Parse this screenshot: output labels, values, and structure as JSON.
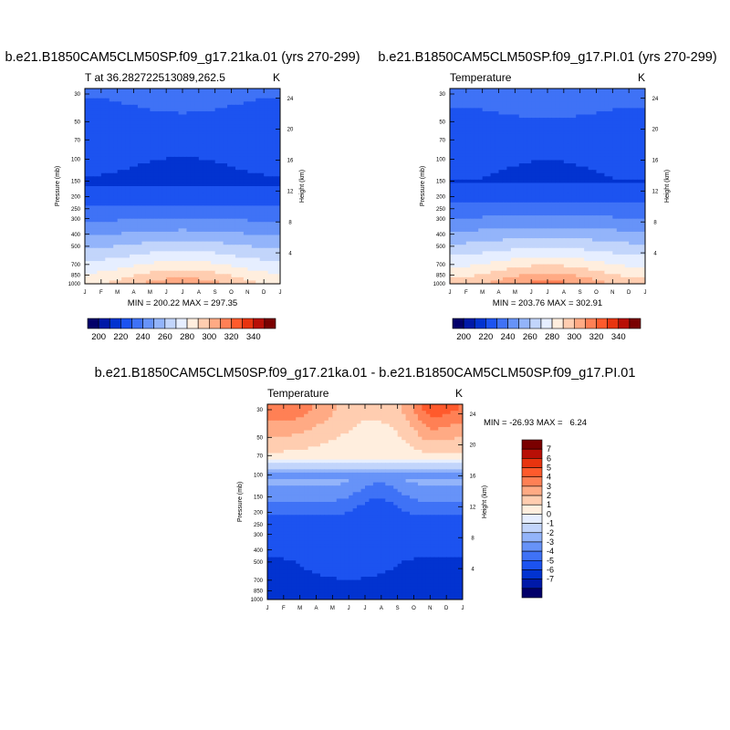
{
  "chart_data": [
    {
      "type": "heatmap",
      "panel": "top-left",
      "title": "b.e21.B1850CAM5CLM50SP.f09_g17.21ka.01 (yrs 270-299)",
      "left_label": "T at 36.282722513089,262.5",
      "units": "K",
      "ylabel": "Pressure (mb)",
      "y2label": "Height (km)",
      "x_ticks": [
        "J",
        "F",
        "M",
        "A",
        "M",
        "J",
        "J",
        "A",
        "S",
        "O",
        "N",
        "D",
        "J"
      ],
      "y_ticks": [
        "30",
        "50",
        "70",
        "100",
        "150",
        "200",
        "250",
        "300",
        "400",
        "500",
        "700",
        "850",
        "1000"
      ],
      "y2_ticks": [
        "24",
        "20",
        "16",
        "12",
        "8",
        "4"
      ],
      "min_text": "MIN = 200.22",
      "max_text": "MAX = 297.35",
      "min": 200.22,
      "max": 297.35,
      "colorbar_levels": [
        200,
        210,
        220,
        230,
        240,
        250,
        260,
        270,
        280,
        290,
        300,
        310,
        320,
        330,
        340
      ],
      "colorbar_labels": [
        "200",
        "220",
        "240",
        "260",
        "280",
        "300",
        "320",
        "340"
      ],
      "profile": {
        "top": 222,
        "strat": 214,
        "tropo_min": 208,
        "surface": 288,
        "seasonal_amp": 9
      }
    },
    {
      "type": "heatmap",
      "panel": "top-right",
      "title": "b.e21.B1850CAM5CLM50SP.f09_g17.PI.01 (yrs 270-299)",
      "left_label": "Temperature",
      "units": "K",
      "ylabel": "Pressure (mb)",
      "y2label": "Height (km)",
      "x_ticks": [
        "J",
        "F",
        "M",
        "A",
        "M",
        "J",
        "J",
        "A",
        "S",
        "O",
        "N",
        "D",
        "J"
      ],
      "y_ticks": [
        "30",
        "50",
        "70",
        "100",
        "150",
        "200",
        "250",
        "300",
        "400",
        "500",
        "700",
        "850",
        "1000"
      ],
      "y2_ticks": [
        "24",
        "20",
        "16",
        "12",
        "8",
        "4"
      ],
      "min_text": "MIN = 203.76",
      "max_text": "MAX = 302.91",
      "min": 203.76,
      "max": 302.91,
      "colorbar_levels": [
        200,
        210,
        220,
        230,
        240,
        250,
        260,
        270,
        280,
        290,
        300,
        310,
        320,
        330,
        340
      ],
      "colorbar_labels": [
        "200",
        "220",
        "240",
        "260",
        "280",
        "300",
        "320",
        "340"
      ],
      "profile": {
        "top": 224,
        "strat": 214,
        "tropo_min": 209,
        "surface": 294,
        "seasonal_amp": 9
      }
    },
    {
      "type": "heatmap",
      "panel": "bottom-center",
      "title": "b.e21.B1850CAM5CLM50SP.f09_g17.21ka.01 - b.e21.B1850CAM5CLM50SP.f09_g17.PI.01",
      "left_label": "Temperature",
      "units": "K",
      "ylabel": "Pressure (mb)",
      "y2label": "Height (km)",
      "x_ticks": [
        "J",
        "F",
        "M",
        "A",
        "M",
        "J",
        "J",
        "A",
        "S",
        "O",
        "N",
        "D",
        "J"
      ],
      "y_ticks": [
        "30",
        "50",
        "70",
        "100",
        "150",
        "200",
        "250",
        "300",
        "400",
        "500",
        "700",
        "850",
        "1000"
      ],
      "y2_ticks": [
        "24",
        "20",
        "16",
        "12",
        "8",
        "4"
      ],
      "min_text": "MIN = -26.93",
      "max_text": "MAX =   6.24",
      "min": -26.93,
      "max": 6.24,
      "colorbar_levels": [
        -7,
        -6,
        -5,
        -4,
        -3,
        -2,
        -1,
        0,
        1,
        2,
        3,
        4,
        5,
        6,
        7
      ],
      "colorbar_labels": [
        "7",
        "6",
        "5",
        "4",
        "3",
        "2",
        "1",
        "0",
        "-1",
        "-2",
        "-3",
        "-4",
        "-5",
        "-6",
        "-7"
      ]
    }
  ],
  "palette": [
    "#02006a",
    "#0019a8",
    "#0233d0",
    "#1c53f0",
    "#3f72f6",
    "#6793f8",
    "#93b4fa",
    "#c2d5fb",
    "#e6eeff",
    "#ffeede",
    "#ffcdb0",
    "#ffaa84",
    "#ff8055",
    "#ff5a2c",
    "#e8340f",
    "#b80f06",
    "#7a0000"
  ]
}
